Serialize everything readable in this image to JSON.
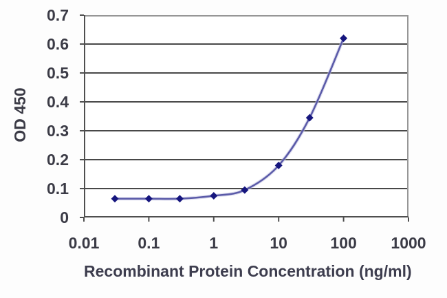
{
  "chart_data": {
    "type": "line",
    "title": "",
    "xlabel": "Recombinant Protein Concentration (ng/ml)",
    "ylabel": "OD 450",
    "x_scale": "log",
    "xlim": [
      0.01,
      1000
    ],
    "ylim": [
      0,
      0.7
    ],
    "x_ticks": [
      0.01,
      0.1,
      1,
      10,
      100,
      1000
    ],
    "x_tick_labels": [
      "0.01",
      "0.1",
      "1",
      "10",
      "100",
      "1000"
    ],
    "y_ticks": [
      0,
      0.1,
      0.2,
      0.3,
      0.4,
      0.5,
      0.6,
      0.7
    ],
    "y_tick_labels": [
      "0",
      "0.1",
      "0.2",
      "0.3",
      "0.4",
      "0.5",
      "0.6",
      "0.7"
    ],
    "grid": "horizontal",
    "legend": "none",
    "series": [
      {
        "name": "OD 450",
        "marker": "diamond",
        "x": [
          0.03,
          0.1,
          0.3,
          1,
          3,
          10,
          30,
          100
        ],
        "y": [
          0.065,
          0.065,
          0.065,
          0.075,
          0.095,
          0.18,
          0.345,
          0.62
        ]
      }
    ],
    "colors": {
      "line": "#5a5aa8",
      "line_halo": "#c3c3e2",
      "marker": "#16167e",
      "grid": "#484848",
      "frame": "#969696",
      "axis": "#4f4f4f",
      "text": "#3b3b46",
      "plot_background": "#ffffff",
      "page_background": "#fdfdfd"
    }
  }
}
